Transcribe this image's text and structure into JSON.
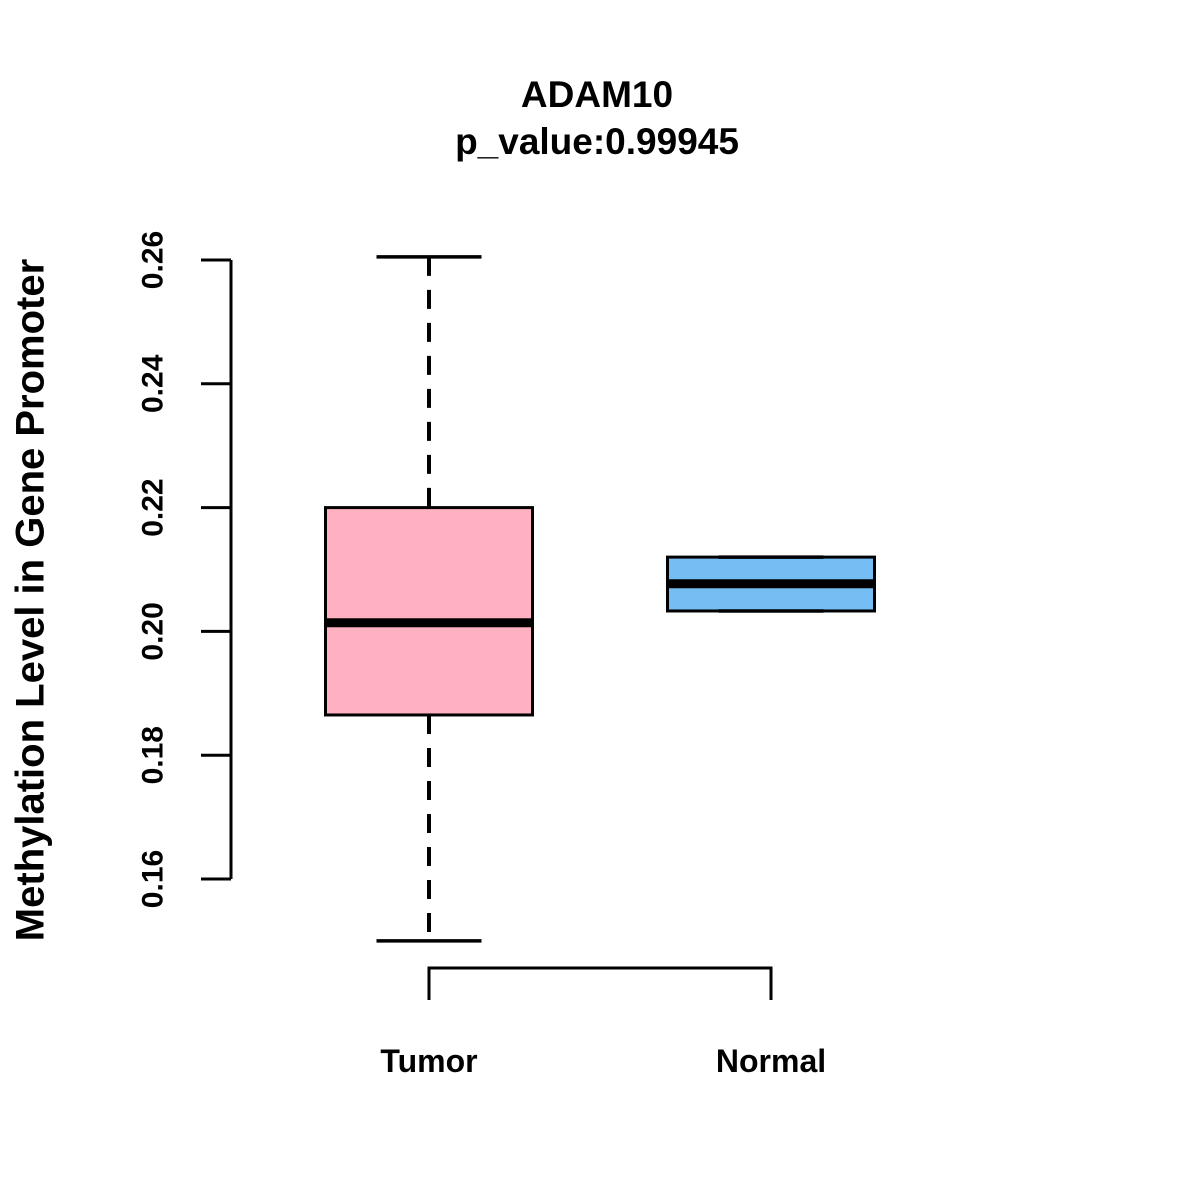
{
  "figure": {
    "background": "#FFFFFF",
    "text_color": "#000000"
  },
  "chart_data": {
    "type": "box",
    "title": "ADAM10",
    "subtitle": "p_value:0.99945",
    "ylabel": "Methylation Level in Gene Promoter",
    "xlabel": "",
    "categories": [
      "Tumor",
      "Normal"
    ],
    "ylim": [
      0.16,
      0.26
    ],
    "yticks": [
      0.26,
      0.24,
      0.22,
      0.2,
      0.18,
      0.16
    ],
    "ytick_labels": [
      "0.26",
      "0.24",
      "0.22",
      "0.20",
      "0.18",
      "0.16"
    ],
    "grid": false,
    "legend_position": "none",
    "series": [
      {
        "name": "Tumor",
        "fill_color": "#FFB0C1",
        "border_color": "#000000",
        "median_color": "#000000",
        "min": 0.15,
        "q1": 0.1865,
        "median": 0.2014,
        "q3": 0.22,
        "max": 0.2605,
        "whisker_style": "dashed"
      },
      {
        "name": "Normal",
        "fill_color": "#74BEF4",
        "border_color": "#000000",
        "median_color": "#000000",
        "min": 0.2033,
        "q1": 0.2033,
        "median": 0.2077,
        "q3": 0.212,
        "max": 0.212,
        "whisker_style": "dashed"
      }
    ]
  }
}
